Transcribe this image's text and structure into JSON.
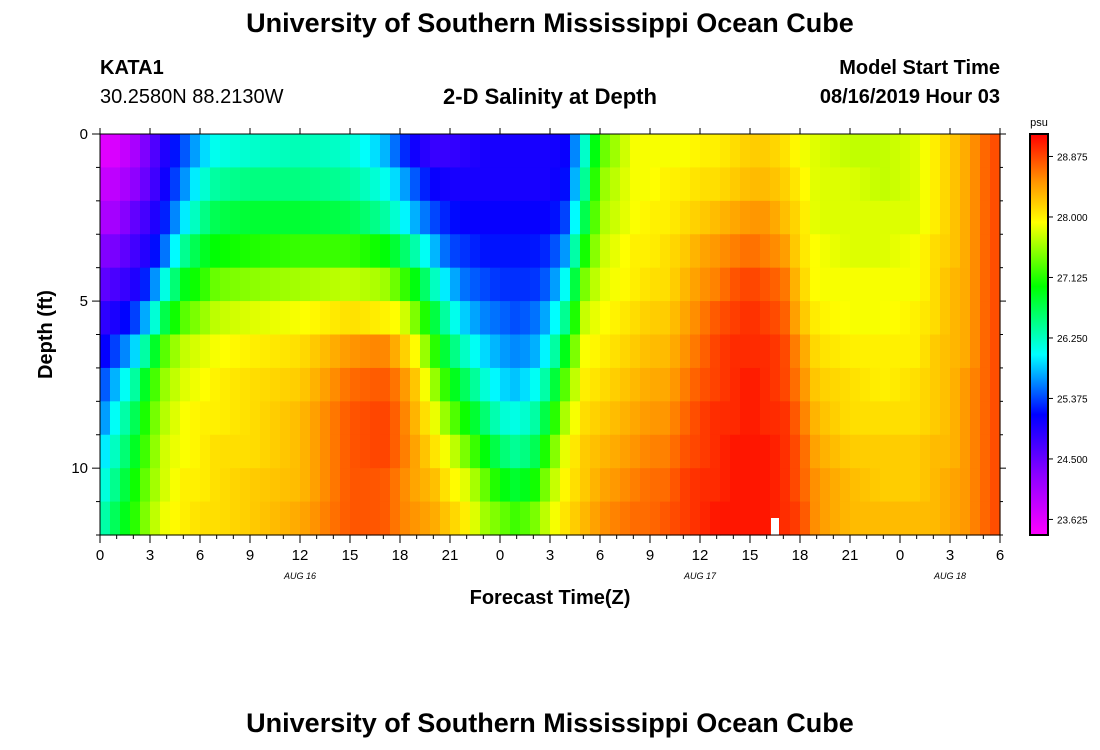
{
  "header": {
    "title": "University of Southern Mississippi Ocean Cube",
    "station": "KATA1",
    "coordinates": "30.2580N 88.2130W",
    "subtitle": "2-D Salinity at Depth",
    "model_label": "Model Start Time",
    "model_time": "08/16/2019 Hour 03",
    "footer_title": "University of Southern Mississippi Ocean Cube"
  },
  "chart_data": {
    "type": "heatmap",
    "title": "2-D Salinity at Depth",
    "xlabel": "Forecast Time(Z)",
    "ylabel": "Depth (ft)",
    "x_tick_labels": [
      "0",
      "3",
      "6",
      "9",
      "12",
      "15",
      "18",
      "21",
      "0",
      "3",
      "6",
      "9",
      "12",
      "15",
      "18",
      "21",
      "0",
      "3",
      "6"
    ],
    "x_day_labels": [
      {
        "label": "AUG 16",
        "hour": 12
      },
      {
        "label": "AUG 17",
        "hour": 36
      },
      {
        "label": "AUG 18",
        "hour": 51
      }
    ],
    "xlim": [
      0,
      54
    ],
    "y_tick_labels": [
      "0",
      "5",
      "10"
    ],
    "y_ticks": [
      0,
      5,
      10
    ],
    "ylim": [
      0,
      12
    ],
    "colorbar": {
      "unit": "psu",
      "min": 23.4,
      "max": 29.2,
      "tick_labels": [
        "28.875",
        "28.000",
        "27.125",
        "26.250",
        "25.375",
        "24.500",
        "23.625"
      ],
      "tick_values": [
        28.875,
        28.0,
        27.125,
        26.25,
        25.375,
        24.5,
        23.625
      ]
    },
    "depths_ft": [
      0.5,
      1.5,
      2.5,
      3.5,
      4.5,
      5.5,
      6.5,
      7.5,
      8.5,
      9.5,
      10.5,
      11.5
    ],
    "depth_profiles": [
      {
        "hour": 0,
        "values": [
          23.6,
          23.8,
          24.0,
          24.3,
          24.5,
          24.8,
          25.0,
          25.3,
          25.5,
          25.8,
          26.0,
          26.2
        ]
      },
      {
        "hour": 1,
        "values": [
          23.7,
          23.9,
          24.1,
          24.4,
          24.7,
          25.0,
          25.4,
          25.8,
          26.1,
          26.3,
          26.5,
          26.7
        ]
      },
      {
        "hour": 2,
        "values": [
          24.0,
          24.2,
          24.5,
          24.7,
          24.9,
          25.3,
          25.8,
          26.3,
          26.6,
          26.8,
          27.0,
          27.1
        ]
      },
      {
        "hour": 3,
        "values": [
          24.5,
          24.6,
          24.8,
          25.0,
          25.4,
          25.9,
          26.6,
          27.1,
          27.3,
          27.4,
          27.5,
          27.6
        ]
      },
      {
        "hour": 4,
        "values": [
          25.0,
          25.1,
          25.3,
          25.6,
          26.2,
          26.8,
          27.4,
          27.6,
          27.7,
          27.8,
          27.8,
          27.9
        ]
      },
      {
        "hour": 5,
        "values": [
          25.4,
          25.6,
          25.9,
          26.4,
          26.9,
          27.3,
          27.7,
          27.8,
          27.9,
          27.9,
          28.0,
          28.0
        ]
      },
      {
        "hour": 6,
        "values": [
          25.8,
          26.1,
          26.4,
          26.8,
          27.1,
          27.5,
          27.8,
          27.9,
          28.0,
          28.0,
          28.0,
          28.1
        ]
      },
      {
        "hour": 7,
        "values": [
          26.1,
          26.4,
          26.7,
          27.0,
          27.4,
          27.7,
          27.9,
          28.0,
          28.0,
          28.1,
          28.1,
          28.1
        ]
      },
      {
        "hour": 9,
        "values": [
          26.2,
          26.5,
          26.8,
          27.1,
          27.5,
          27.8,
          28.0,
          28.1,
          28.1,
          28.1,
          28.2,
          28.2
        ]
      },
      {
        "hour": 12,
        "values": [
          26.3,
          26.5,
          26.8,
          27.2,
          27.6,
          27.9,
          28.1,
          28.2,
          28.3,
          28.3,
          28.3,
          28.4
        ]
      },
      {
        "hour": 15,
        "values": [
          26.2,
          26.4,
          26.7,
          27.2,
          27.7,
          28.1,
          28.5,
          28.7,
          28.8,
          28.8,
          28.8,
          28.8
        ]
      },
      {
        "hour": 17,
        "values": [
          25.8,
          26.1,
          26.4,
          27.0,
          27.6,
          28.0,
          28.6,
          28.8,
          28.9,
          28.9,
          28.8,
          28.8
        ]
      },
      {
        "hour": 18,
        "values": [
          25.4,
          25.8,
          26.1,
          26.7,
          27.3,
          27.9,
          28.3,
          28.6,
          28.7,
          28.7,
          28.6,
          28.6
        ]
      },
      {
        "hour": 19,
        "values": [
          25.0,
          25.4,
          25.7,
          26.3,
          26.9,
          27.4,
          27.9,
          28.2,
          28.3,
          28.4,
          28.4,
          28.5
        ]
      },
      {
        "hour": 20,
        "values": [
          24.8,
          25.1,
          25.4,
          25.8,
          26.3,
          26.8,
          27.2,
          27.6,
          27.9,
          28.1,
          28.3,
          28.4
        ]
      },
      {
        "hour": 21,
        "values": [
          24.8,
          25.0,
          25.2,
          25.4,
          25.8,
          26.2,
          26.6,
          27.0,
          27.4,
          27.8,
          28.0,
          28.2
        ]
      },
      {
        "hour": 22,
        "values": [
          24.9,
          25.0,
          25.1,
          25.3,
          25.5,
          25.8,
          26.2,
          26.6,
          27.0,
          27.4,
          27.8,
          28.0
        ]
      },
      {
        "hour": 23,
        "values": [
          25.0,
          25.0,
          25.1,
          25.2,
          25.4,
          25.6,
          25.9,
          26.2,
          26.6,
          27.0,
          27.4,
          27.6
        ]
      },
      {
        "hour": 24,
        "values": [
          25.0,
          25.0,
          25.1,
          25.2,
          25.3,
          25.5,
          25.7,
          25.9,
          26.2,
          26.6,
          27.0,
          27.4
        ]
      },
      {
        "hour": 25,
        "values": [
          25.0,
          25.0,
          25.1,
          25.2,
          25.3,
          25.4,
          25.6,
          25.8,
          26.1,
          26.4,
          26.8,
          27.2
        ]
      },
      {
        "hour": 26,
        "values": [
          25.0,
          25.0,
          25.1,
          25.2,
          25.3,
          25.5,
          25.7,
          26.0,
          26.3,
          26.6,
          27.0,
          27.4
        ]
      },
      {
        "hour": 27,
        "values": [
          25.0,
          25.0,
          25.1,
          25.3,
          25.5,
          25.8,
          26.1,
          26.5,
          26.9,
          27.3,
          27.6,
          27.8
        ]
      },
      {
        "hour": 28,
        "values": [
          25.1,
          25.2,
          25.4,
          25.7,
          26.1,
          26.5,
          27.0,
          27.4,
          27.7,
          27.9,
          28.0,
          28.1
        ]
      },
      {
        "hour": 29,
        "values": [
          26.1,
          26.3,
          26.6,
          27.0,
          27.4,
          27.7,
          27.9,
          28.0,
          28.1,
          28.2,
          28.2,
          28.3
        ]
      },
      {
        "hour": 30,
        "values": [
          27.3,
          27.5,
          27.6,
          27.7,
          27.8,
          27.9,
          28.0,
          28.1,
          28.2,
          28.3,
          28.4,
          28.5
        ]
      },
      {
        "hour": 32,
        "values": [
          27.9,
          27.9,
          27.9,
          28.0,
          28.0,
          28.1,
          28.2,
          28.3,
          28.4,
          28.5,
          28.6,
          28.7
        ]
      },
      {
        "hour": 33,
        "values": [
          27.9,
          27.9,
          28.0,
          28.0,
          28.1,
          28.2,
          28.3,
          28.4,
          28.5,
          28.6,
          28.7,
          28.7
        ]
      },
      {
        "hour": 34,
        "values": [
          27.9,
          28.0,
          28.0,
          28.1,
          28.1,
          28.2,
          28.3,
          28.4,
          28.5,
          28.6,
          28.7,
          28.8
        ]
      },
      {
        "hour": 35,
        "values": [
          27.9,
          28.0,
          28.1,
          28.2,
          28.3,
          28.4,
          28.5,
          28.6,
          28.7,
          28.8,
          28.9,
          28.9
        ]
      },
      {
        "hour": 36,
        "values": [
          28.0,
          28.1,
          28.2,
          28.4,
          28.5,
          28.6,
          28.7,
          28.8,
          28.9,
          28.9,
          29.0,
          29.0
        ]
      },
      {
        "hour": 37,
        "values": [
          28.0,
          28.1,
          28.3,
          28.5,
          28.6,
          28.8,
          28.9,
          28.9,
          29.0,
          29.0,
          29.0,
          29.1
        ]
      },
      {
        "hour": 38,
        "values": [
          28.1,
          28.2,
          28.4,
          28.6,
          28.8,
          28.9,
          29.0,
          29.0,
          29.0,
          29.1,
          29.1,
          29.1
        ]
      },
      {
        "hour": 39,
        "values": [
          28.2,
          28.3,
          28.5,
          28.7,
          28.9,
          29.0,
          29.0,
          29.1,
          29.1,
          29.1,
          29.1,
          29.1
        ]
      },
      {
        "hour": 40,
        "values": [
          28.2,
          28.3,
          28.5,
          28.6,
          28.8,
          28.9,
          29.0,
          29.0,
          29.0,
          29.1,
          29.1,
          29.1
        ]
      },
      {
        "hour": 41,
        "values": [
          28.1,
          28.2,
          28.3,
          28.5,
          28.7,
          28.8,
          28.9,
          28.9,
          29.0,
          29.0,
          29.0,
          29.0
        ]
      },
      {
        "hour": 42,
        "values": [
          27.9,
          28.0,
          28.1,
          28.1,
          28.2,
          28.3,
          28.5,
          28.6,
          28.7,
          28.8,
          28.8,
          28.9
        ]
      },
      {
        "hour": 43,
        "values": [
          27.8,
          27.8,
          27.8,
          27.9,
          27.9,
          28.0,
          28.1,
          28.2,
          28.3,
          28.4,
          28.5,
          28.5
        ]
      },
      {
        "hour": 45,
        "values": [
          27.7,
          27.8,
          27.8,
          27.8,
          27.9,
          27.9,
          28.0,
          28.1,
          28.1,
          28.2,
          28.3,
          28.3
        ]
      },
      {
        "hour": 47,
        "values": [
          27.7,
          27.7,
          27.8,
          27.8,
          27.9,
          27.9,
          28.0,
          28.0,
          28.1,
          28.2,
          28.2,
          28.3
        ]
      },
      {
        "hour": 49,
        "values": [
          27.8,
          27.8,
          27.8,
          27.9,
          27.9,
          28.0,
          28.0,
          28.1,
          28.1,
          28.2,
          28.2,
          28.3
        ]
      },
      {
        "hour": 50,
        "values": [
          28.0,
          28.0,
          28.0,
          28.1,
          28.1,
          28.1,
          28.2,
          28.2,
          28.2,
          28.3,
          28.3,
          28.3
        ]
      },
      {
        "hour": 51,
        "values": [
          28.2,
          28.2,
          28.2,
          28.2,
          28.3,
          28.3,
          28.3,
          28.3,
          28.3,
          28.3,
          28.4,
          28.4
        ]
      },
      {
        "hour": 52,
        "values": [
          28.4,
          28.4,
          28.4,
          28.4,
          28.4,
          28.4,
          28.4,
          28.5,
          28.5,
          28.5,
          28.5,
          28.5
        ]
      },
      {
        "hour": 53,
        "values": [
          28.7,
          28.7,
          28.7,
          28.7,
          28.7,
          28.7,
          28.7,
          28.7,
          28.7,
          28.7,
          28.7,
          28.7
        ]
      },
      {
        "hour": 54,
        "values": [
          28.9,
          28.9,
          28.9,
          28.9,
          28.9,
          28.9,
          28.9,
          28.9,
          28.9,
          28.9,
          28.9,
          28.9
        ]
      }
    ],
    "marker_hour": 40.5
  }
}
